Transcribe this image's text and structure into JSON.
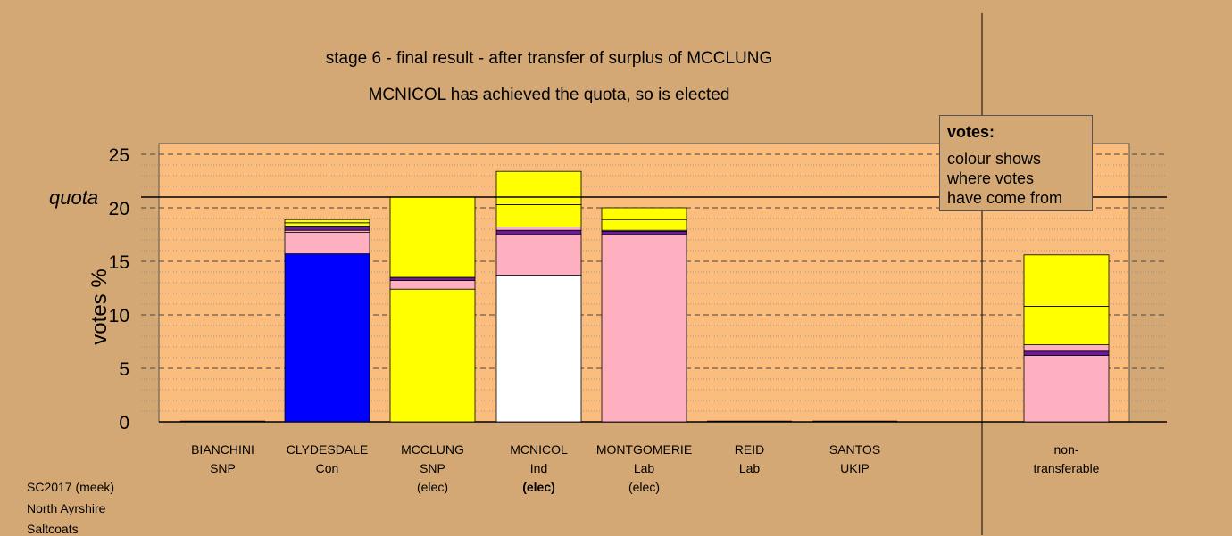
{
  "title_line1": "stage 6 - final result - after transfer of surplus of MCCLUNG",
  "title_line2": "MCNICOL has achieved the quota, so is elected",
  "legend": {
    "title": "votes:",
    "lines": [
      "colour shows",
      "where votes",
      "have come from"
    ]
  },
  "footer": [
    "SC2017 (meek)",
    "North Ayrshire",
    "Saltcoats"
  ],
  "chart_data": {
    "type": "bar",
    "ylabel": "votes %",
    "quota_label": "quota",
    "quota": 21.0,
    "ylim": [
      0,
      26
    ],
    "yticks": [
      0,
      5,
      10,
      15,
      20,
      25
    ],
    "categories": [
      {
        "name": "BIANCHINI",
        "party": "SNP",
        "status": "",
        "status_bold": false
      },
      {
        "name": "CLYDESDALE",
        "party": "Con",
        "status": "",
        "status_bold": false
      },
      {
        "name": "MCCLUNG",
        "party": "SNP",
        "status": "(elec)",
        "status_bold": false
      },
      {
        "name": "MCNICOL",
        "party": "Ind",
        "status": "(elec)",
        "status_bold": true
      },
      {
        "name": "MONTGOMERIE",
        "party": "Lab",
        "status": "(elec)",
        "status_bold": false
      },
      {
        "name": "REID",
        "party": "Lab",
        "status": "",
        "status_bold": false
      },
      {
        "name": "SANTOS",
        "party": "UKIP",
        "status": "",
        "status_bold": false
      },
      {
        "name": "non-\ntransferable",
        "party": "",
        "status": "",
        "status_bold": false
      }
    ],
    "colors": {
      "Con": "#0000ff",
      "SNP": "#ffff00",
      "Ind": "#ffffff",
      "Lab": "#ffb0c0",
      "UKIP": "#6a1b9a",
      "Lab2": "#ffb0c0"
    },
    "stacks": [
      [],
      [
        {
          "from": "Con",
          "value": 15.7
        },
        {
          "from": "Lab",
          "value": 2.0
        },
        {
          "from": "Lab2",
          "value": 0.2
        },
        {
          "from": "UKIP",
          "value": 0.3
        },
        {
          "from": "Ind",
          "value": 0.1
        },
        {
          "from": "SNP",
          "value": 0.3
        },
        {
          "from": "SNP",
          "value": 0.3
        }
      ],
      [
        {
          "from": "SNP",
          "value": 12.4
        },
        {
          "from": "Lab",
          "value": 0.8
        },
        {
          "from": "UKIP",
          "value": 0.3
        },
        {
          "from": "SNP",
          "value": 7.5
        }
      ],
      [
        {
          "from": "Ind",
          "value": 13.7
        },
        {
          "from": "Lab",
          "value": 3.8
        },
        {
          "from": "UKIP",
          "value": 0.4
        },
        {
          "from": "Lab2",
          "value": 0.3
        },
        {
          "from": "SNP",
          "value": 2.1
        },
        {
          "from": "SNP",
          "value": 3.1
        }
      ],
      [
        {
          "from": "Lab",
          "value": 17.5
        },
        {
          "from": "UKIP",
          "value": 0.3
        },
        {
          "from": "Lab2",
          "value": 0.1
        },
        {
          "from": "SNP",
          "value": 1.0
        },
        {
          "from": "SNP",
          "value": 1.1
        }
      ],
      [],
      [],
      [
        {
          "from": "Lab",
          "value": 6.2
        },
        {
          "from": "UKIP",
          "value": 0.4
        },
        {
          "from": "Lab2",
          "value": 0.6
        },
        {
          "from": "SNP",
          "value": 3.6
        },
        {
          "from": "SNP",
          "value": 4.8
        }
      ]
    ]
  }
}
